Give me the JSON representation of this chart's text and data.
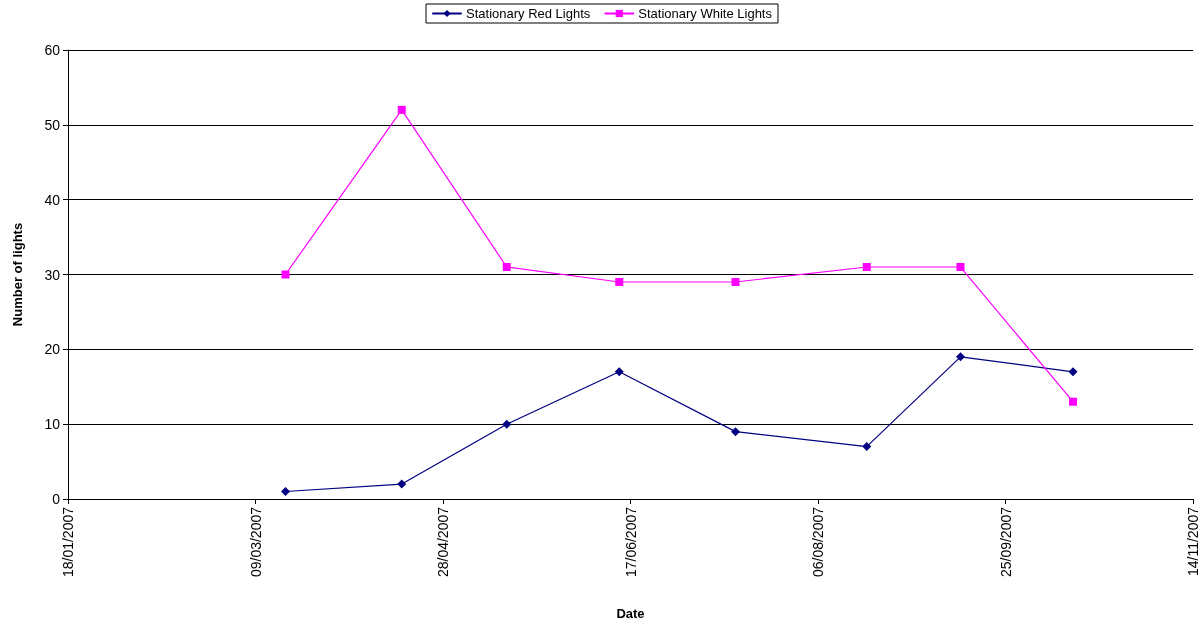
{
  "chart_data": {
    "type": "line",
    "xlabel": "Date",
    "ylabel": "Number of lights",
    "x": [
      "2007-03-17",
      "2007-04-17",
      "2007-05-15",
      "2007-06-14",
      "2007-07-15",
      "2007-08-19",
      "2007-09-13",
      "2007-10-13"
    ],
    "series": [
      {
        "name": "Stationary Red Lights",
        "color": "#000080",
        "marker": "diamond",
        "values": [
          1,
          2,
          10,
          17,
          9,
          7,
          19,
          17
        ]
      },
      {
        "name": "Stationary White Lights",
        "color": "#ff00ff",
        "marker": "square",
        "values": [
          30,
          52,
          31,
          29,
          29,
          31,
          31,
          13
        ]
      }
    ],
    "xlim": [
      "2007-01-18",
      "2007-11-14"
    ],
    "xticks": [
      {
        "value": "2007-01-18",
        "label": "18/01/2007"
      },
      {
        "value": "2007-03-09",
        "label": "09/03/2007"
      },
      {
        "value": "2007-04-28",
        "label": "28/04/2007"
      },
      {
        "value": "2007-06-17",
        "label": "17/06/2007"
      },
      {
        "value": "2007-08-06",
        "label": "06/08/2007"
      },
      {
        "value": "2007-09-25",
        "label": "25/09/2007"
      },
      {
        "value": "2007-11-14",
        "label": "14/11/2007"
      }
    ],
    "ylim": [
      0,
      60
    ],
    "yticks": [
      0,
      10,
      20,
      30,
      40,
      50,
      60
    ],
    "grid": "y",
    "legend": "top",
    "line_style": "solid"
  }
}
